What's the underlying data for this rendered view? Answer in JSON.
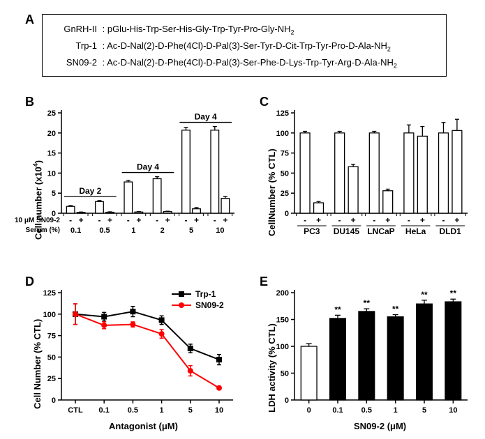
{
  "panelA": {
    "label": "A",
    "rows": [
      {
        "name": "GnRH-II",
        "seq_parts": [
          "pGlu-His-Trp-Ser-His-Gly-Trp-Tyr-Pro-Gly-NH",
          "2"
        ]
      },
      {
        "name": "Trp-1",
        "seq_parts": [
          "Ac-D-Nal(2)-D-Phe(4Cl)-D-Pal(3)-Ser-Tyr-D-Cit-Trp-Tyr-Pro-D-Ala-NH",
          "2"
        ]
      },
      {
        "name": "SN09-2",
        "seq_parts": [
          "Ac-D-Nal(2)-D-Phe(4Cl)-D-Pal(3)-Ser-Phe-D-Lys-Trp-Tyr-Arg-D-Ala-NH",
          "2"
        ]
      }
    ]
  },
  "panelB": {
    "label": "B",
    "y_label_main": "Cell number (x10",
    "y_label_exp": "4",
    "y_label_close": ")",
    "x_sub1": "10 μM SN09-2",
    "x_sub2": "Serum (%)",
    "ylim": [
      0,
      25
    ],
    "yticks": [
      0,
      5,
      10,
      15,
      20,
      25
    ],
    "groups": [
      {
        "serum": "0.1",
        "day": "Day 2",
        "minus": 1.7,
        "plus": 0.2,
        "err_m": 0.2,
        "err_p": 0.1
      },
      {
        "serum": "0.5",
        "day": "Day 2",
        "minus": 2.9,
        "plus": 0.25,
        "err_m": 0.25,
        "err_p": 0.1
      },
      {
        "serum": "1",
        "day": "Day 4",
        "minus": 7.8,
        "plus": 0.3,
        "err_m": 0.4,
        "err_p": 0.1
      },
      {
        "serum": "2",
        "day": "Day 4",
        "minus": 8.6,
        "plus": 0.4,
        "err_m": 0.5,
        "err_p": 0.1
      },
      {
        "serum": "5",
        "day": "Day 4",
        "minus": 20.7,
        "plus": 1.1,
        "err_m": 0.7,
        "err_p": 0.3
      },
      {
        "serum": "10",
        "day": "Day 4",
        "minus": 20.7,
        "plus": 3.7,
        "err_m": 0.9,
        "err_p": 0.5
      }
    ],
    "bar_fill": "#ffffff",
    "bar_stroke": "#000000",
    "day2_label": "Day 2",
    "day4_label": "Day 4",
    "minus": "-",
    "plus": "+"
  },
  "panelC": {
    "label": "C",
    "y_label": "CellNumber (% CTL)",
    "ylim": [
      0,
      125
    ],
    "yticks": [
      0,
      25,
      50,
      75,
      100,
      125
    ],
    "groups": [
      {
        "name": "PC3",
        "minus": 100,
        "plus": 13,
        "err_m": 2,
        "err_p": 1.5
      },
      {
        "name": "DU145",
        "minus": 100,
        "plus": 58,
        "err_m": 2,
        "err_p": 3
      },
      {
        "name": "LNCaP",
        "minus": 100,
        "plus": 28,
        "err_m": 2,
        "err_p": 2
      },
      {
        "name": "HeLa",
        "minus": 100,
        "plus": 96,
        "err_m": 10,
        "err_p": 12
      },
      {
        "name": "DLD1",
        "minus": 100,
        "plus": 103,
        "err_m": 13,
        "err_p": 14
      }
    ],
    "bar_fill": "#ffffff",
    "bar_stroke": "#000000",
    "minus": "-",
    "plus": "+"
  },
  "panelD": {
    "label": "D",
    "y_label": "Cell Number (% CTL)",
    "x_label": "Antagonist (μM)",
    "ylim": [
      0,
      125
    ],
    "yticks": [
      0,
      25,
      50,
      75,
      100,
      125
    ],
    "categories": [
      "CTL",
      "0.1",
      "0.5",
      "1",
      "5",
      "10"
    ],
    "series": [
      {
        "name": "Trp-1",
        "color": "#000000",
        "marker": "square",
        "values": [
          100,
          97,
          103,
          93,
          60,
          47
        ],
        "err": [
          12,
          5,
          6,
          5,
          5,
          6
        ]
      },
      {
        "name": "SN09-2",
        "color": "#ff0000",
        "marker": "circle",
        "values": [
          100,
          87,
          88,
          77,
          34,
          14
        ],
        "err": [
          12,
          4,
          3,
          5,
          6,
          2
        ]
      }
    ],
    "label_fontsize": 12
  },
  "panelE": {
    "label": "E",
    "y_label": "LDH activity (% CTL)",
    "x_label": "SN09-2 (μM)",
    "ylim": [
      0,
      200
    ],
    "yticks": [
      0,
      50,
      100,
      150,
      200
    ],
    "categories": [
      "0",
      "0.1",
      "0.5",
      "1",
      "5",
      "10"
    ],
    "values": [
      100,
      152,
      165,
      155,
      179,
      183
    ],
    "err": [
      5,
      6,
      5,
      4,
      7,
      5
    ],
    "colors": [
      "#ffffff",
      "#000000",
      "#000000",
      "#000000",
      "#000000",
      "#000000"
    ],
    "sig": "**",
    "sig_idx": [
      1,
      2,
      3,
      4,
      5
    ],
    "bar_stroke": "#000000"
  },
  "common": {
    "bg": "#ffffff",
    "axis_color": "#000000",
    "axis_width": 1.5,
    "bar_width": 0.38,
    "err_cap": 4,
    "panel_label_fontsize": 18
  }
}
